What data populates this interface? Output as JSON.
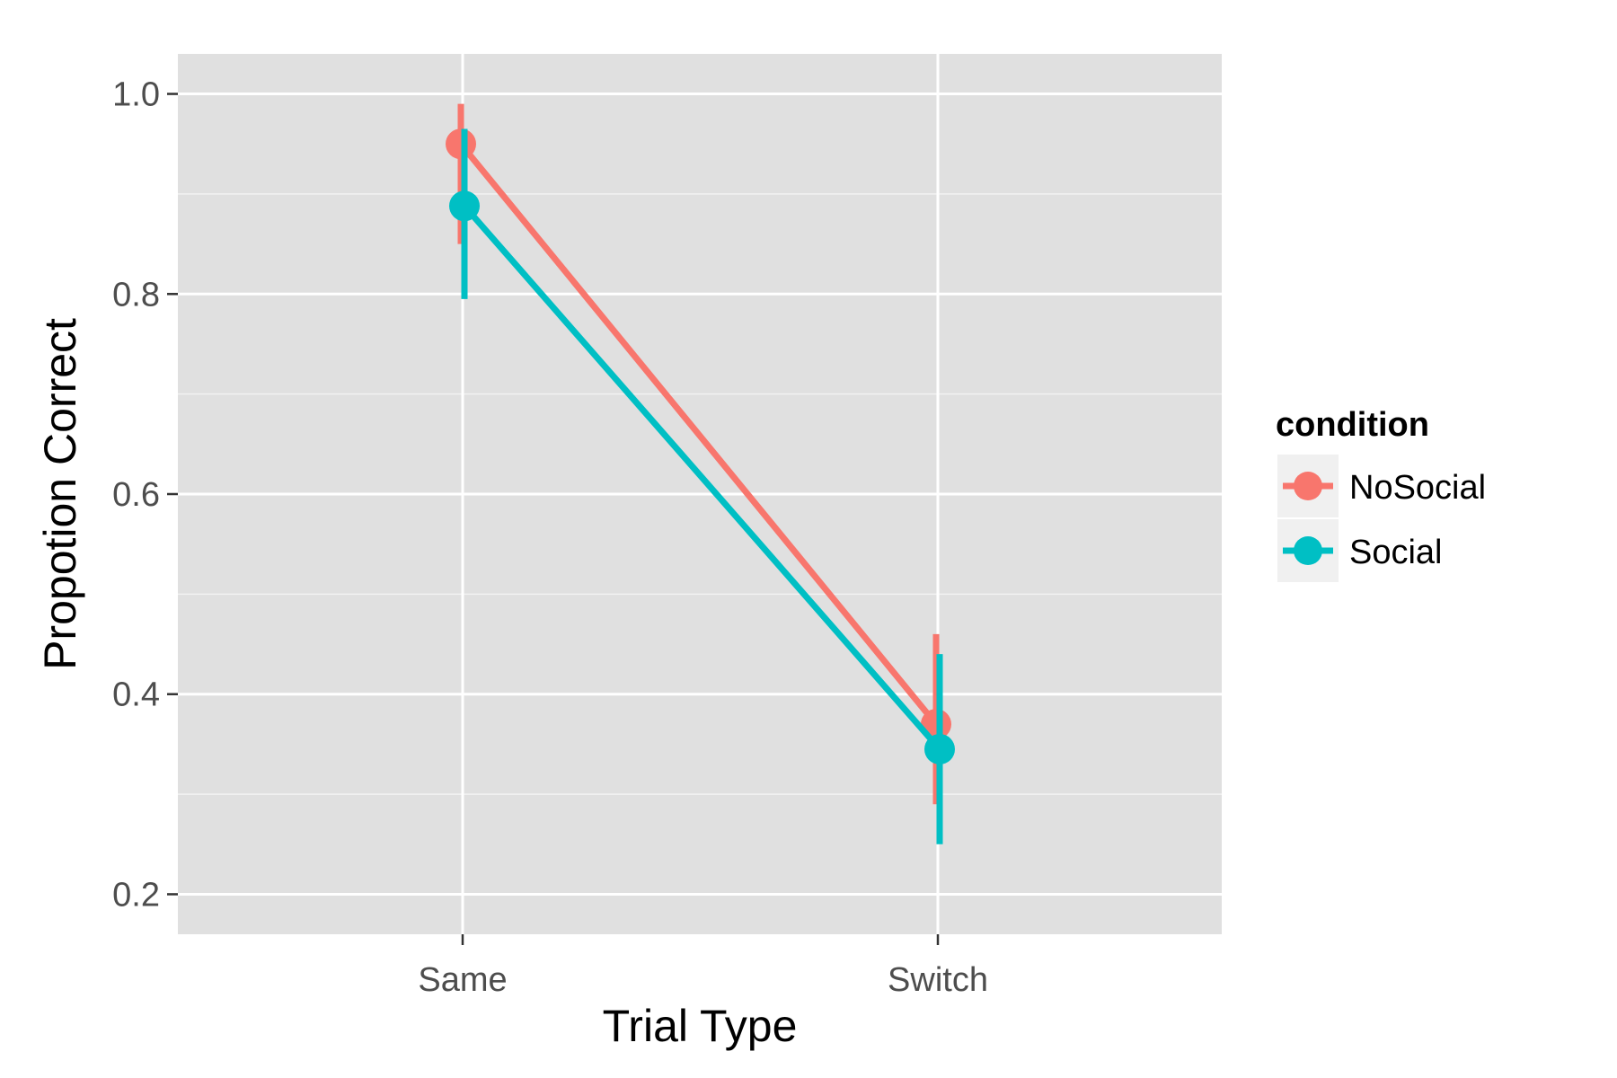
{
  "chart_data": {
    "type": "line",
    "title": "",
    "xlabel": "Trial Type",
    "ylabel": "Propotion Correct",
    "categories": [
      "Same",
      "Switch"
    ],
    "y_ticks": [
      "0.2",
      "0.4",
      "0.6",
      "0.8",
      "1.0"
    ],
    "ylim": [
      0.16,
      1.04
    ],
    "grid": true,
    "legend": {
      "title": "condition",
      "position": "right"
    },
    "series": [
      {
        "name": "NoSocial",
        "color": "#F8766D",
        "values": [
          0.95,
          0.37
        ],
        "error_low": [
          0.85,
          0.29
        ],
        "error_high": [
          0.99,
          0.46
        ]
      },
      {
        "name": "Social",
        "color": "#00BFC4",
        "values": [
          0.888,
          0.345
        ],
        "error_low": [
          0.795,
          0.25
        ],
        "error_high": [
          0.965,
          0.44
        ]
      }
    ]
  }
}
